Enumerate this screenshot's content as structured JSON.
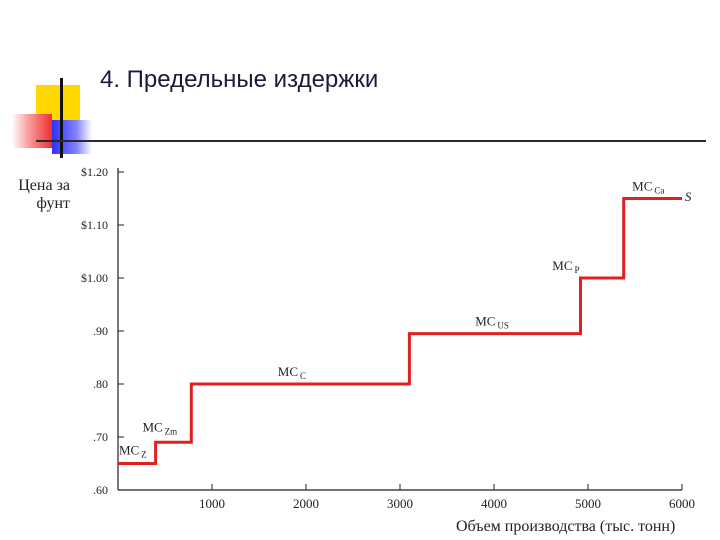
{
  "slide": {
    "title": "4. Предельные издержки",
    "colors": {
      "title": "#1a1a3a",
      "line": "#e02020",
      "axis": "#222222"
    }
  },
  "chart_data": {
    "type": "line",
    "title": "",
    "xlabel": "Объем производства (тыс. тонн)",
    "ylabel": "Цена за фунт",
    "xlim": [
      0,
      6000
    ],
    "ylim": [
      0.6,
      1.2
    ],
    "x_ticks": [
      {
        "value": 1000,
        "label": "1000"
      },
      {
        "value": 2000,
        "label": "2000"
      },
      {
        "value": 3000,
        "label": "3000"
      },
      {
        "value": 4000,
        "label": "4000"
      },
      {
        "value": 5000,
        "label": "5000"
      },
      {
        "value": 6000,
        "label": "6000"
      }
    ],
    "y_ticks": [
      {
        "value": 0.6,
        "label": ".60"
      },
      {
        "value": 0.7,
        "label": ".70"
      },
      {
        "value": 0.8,
        "label": ".80"
      },
      {
        "value": 0.9,
        "label": ".90"
      },
      {
        "value": 1.0,
        "label": "$1.00"
      },
      {
        "value": 1.1,
        "label": "$1.10"
      },
      {
        "value": 1.2,
        "label": "$1.20"
      }
    ],
    "series": [
      {
        "name": "S",
        "type": "step",
        "points": [
          {
            "x": 0,
            "y": 0.65
          },
          {
            "x": 400,
            "y": 0.65
          },
          {
            "x": 400,
            "y": 0.69
          },
          {
            "x": 780,
            "y": 0.69
          },
          {
            "x": 780,
            "y": 0.8
          },
          {
            "x": 3100,
            "y": 0.8
          },
          {
            "x": 3100,
            "y": 0.895
          },
          {
            "x": 4920,
            "y": 0.895
          },
          {
            "x": 4920,
            "y": 1.0
          },
          {
            "x": 5380,
            "y": 1.0
          },
          {
            "x": 5380,
            "y": 1.15
          },
          {
            "x": 6000,
            "y": 1.15
          }
        ]
      }
    ],
    "annotations": [
      {
        "main": "MC",
        "sub": "Z",
        "x": 10,
        "y": 0.667
      },
      {
        "main": "MC",
        "sub": "Zm",
        "x": 260,
        "y": 0.71
      },
      {
        "main": "MC",
        "sub": "C",
        "x": 1700,
        "y": 0.815
      },
      {
        "main": "MC",
        "sub": "US",
        "x": 3800,
        "y": 0.91
      },
      {
        "main": "MC",
        "sub": "P",
        "x": 4620,
        "y": 1.015
      },
      {
        "main": "MC",
        "sub": "Ca",
        "x": 5470,
        "y": 1.165
      },
      {
        "main": "S",
        "sub": "",
        "x": 6030,
        "y": 1.145
      }
    ]
  }
}
